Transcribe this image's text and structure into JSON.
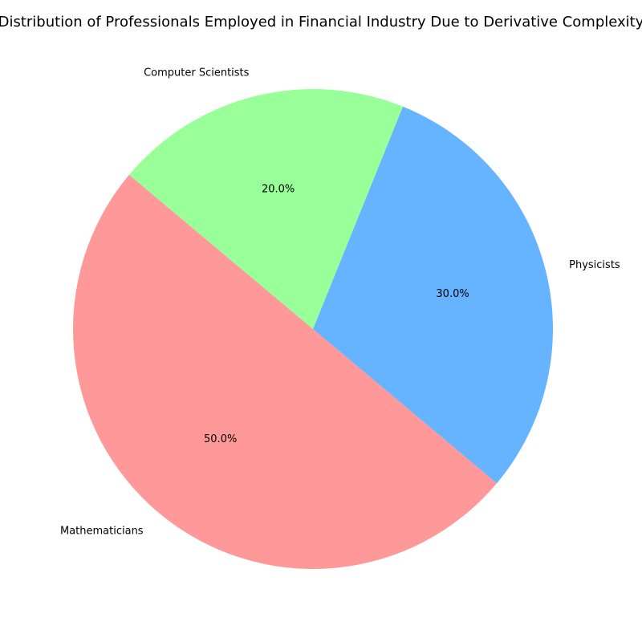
{
  "chart_data": {
    "type": "pie",
    "title": "Distribution of Professionals Employed in Financial Industry Due to Derivative Complexity",
    "categories": [
      "Mathematicians",
      "Physicists",
      "Computer Scientists"
    ],
    "values": [
      50,
      30,
      20
    ],
    "value_labels": [
      "50.0%",
      "30.0%",
      "20.0%"
    ],
    "colors": [
      "#ff9999",
      "#66b3ff",
      "#99ff99"
    ],
    "start_angle_deg": 140,
    "direction": "counterclockwise",
    "legend": "none"
  }
}
